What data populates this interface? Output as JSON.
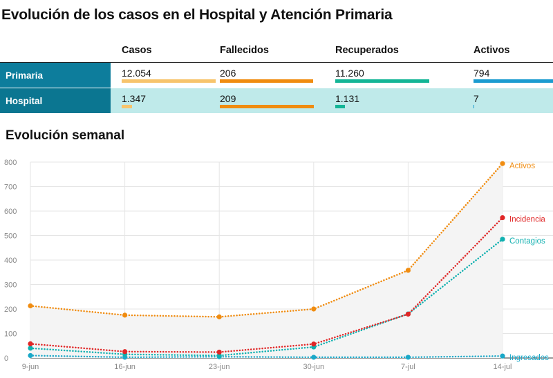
{
  "title": "Evolución de los casos en el Hospital y Atención Primaria",
  "table": {
    "columns": [
      "Casos",
      "Fallecidos",
      "Recuperados",
      "Activos"
    ],
    "colors": [
      "#f7c46c",
      "#f08c10",
      "#13b596",
      "#1a9bd0"
    ],
    "rows": [
      {
        "label": "Primaria",
        "values": [
          "12.054",
          "206",
          "11.260",
          "794"
        ],
        "fractions": [
          1.0,
          0.99,
          1.0,
          1.0
        ]
      },
      {
        "label": "Hospital",
        "values": [
          "1.347",
          "209",
          "1.131",
          "7"
        ],
        "fractions": [
          0.112,
          1.0,
          0.1,
          0.009
        ]
      }
    ]
  },
  "section_title": "Evolución semanal",
  "chart_data": {
    "type": "line",
    "x": [
      "9-jun",
      "16-jun",
      "23-jun",
      "30-jun",
      "7-jul",
      "14-jul"
    ],
    "ylim": [
      0,
      800
    ],
    "yticks": [
      0,
      100,
      200,
      300,
      400,
      500,
      600,
      700,
      800
    ],
    "grid": true,
    "series": [
      {
        "name": "Activos",
        "color": "#f08c10",
        "values": [
          213,
          175,
          168,
          200,
          358,
          794
        ]
      },
      {
        "name": "Incidencia",
        "color": "#e02626",
        "values": [
          58,
          26,
          24,
          57,
          179,
          573
        ]
      },
      {
        "name": "Contagios",
        "color": "#10b0b0",
        "values": [
          40,
          15,
          10,
          45,
          180,
          485
        ]
      },
      {
        "name": "Ingresados",
        "color": "#1aa8c8",
        "values": [
          10,
          3,
          5,
          3,
          3,
          8
        ]
      }
    ]
  }
}
